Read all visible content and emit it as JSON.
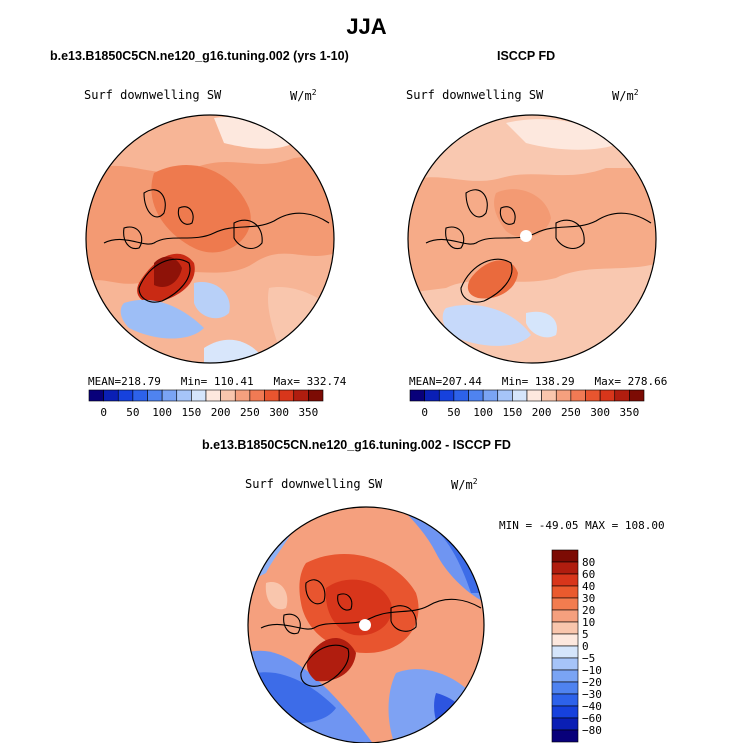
{
  "title": "JJA",
  "panels": [
    {
      "id": "model",
      "title": "b.e13.B1850C5CN.ne120_g16.tuning.002 (yrs 1-10)",
      "variable": "Surf downwelling SW",
      "units_base": "W/m",
      "units_exp": "2",
      "stats": {
        "mean_label": "MEAN=",
        "mean": "218.79",
        "min_label": "Min=",
        "min": "110.41",
        "max_label": "Max=",
        "max": "332.74"
      },
      "colorbar": {
        "colors": [
          "#08007a",
          "#0a1fb5",
          "#1641dd",
          "#2d62ea",
          "#4f83f0",
          "#7aa4f4",
          "#a6c4f8",
          "#d5e5fb",
          "#fde8de",
          "#f9c6ad",
          "#f5a07e",
          "#f07a54",
          "#e8552f",
          "#d8361b",
          "#b01d0f",
          "#7c0b04"
        ],
        "tick_labels": [
          "0",
          "50",
          "100",
          "150",
          "200",
          "250",
          "300",
          "350"
        ]
      }
    },
    {
      "id": "obs",
      "title": "ISCCP FD",
      "variable": "Surf downwelling SW",
      "units_base": "W/m",
      "units_exp": "2",
      "stats": {
        "mean_label": "MEAN=",
        "mean": "207.44",
        "min_label": "Min=",
        "min": "138.29",
        "max_label": "Max=",
        "max": "278.66"
      },
      "colorbar": {
        "colors": [
          "#08007a",
          "#0a1fb5",
          "#1641dd",
          "#2d62ea",
          "#4f83f0",
          "#7aa4f4",
          "#a6c4f8",
          "#d5e5fb",
          "#fde8de",
          "#f9c6ad",
          "#f5a07e",
          "#f07a54",
          "#e8552f",
          "#d8361b",
          "#b01d0f",
          "#7c0b04"
        ],
        "tick_labels": [
          "0",
          "50",
          "100",
          "150",
          "200",
          "250",
          "300",
          "350"
        ]
      }
    }
  ],
  "difference": {
    "title": "b.e13.B1850C5CN.ne120_g16.tuning.002 - ISCCP FD",
    "variable": "Surf downwelling SW",
    "units_base": "W/m",
    "units_exp": "2",
    "minmax": "MIN = -49.05 MAX = 108.00",
    "colorbar": {
      "colors_top_to_bottom": [
        "#7c0b04",
        "#b01d0f",
        "#d8361b",
        "#ea5a2e",
        "#f27c4f",
        "#f5a07e",
        "#f9c6ad",
        "#fde8de",
        "#d5e5fb",
        "#a6c4f8",
        "#7aa4f4",
        "#4f83f0",
        "#2d62ea",
        "#1641dd",
        "#0a1fb5",
        "#08007a"
      ],
      "tick_labels_top_to_bottom": [
        "80",
        "60",
        "40",
        "30",
        "20",
        "10",
        "5",
        "0",
        "−5",
        "−10",
        "−20",
        "−30",
        "−40",
        "−60",
        "−80"
      ]
    }
  },
  "map_colors": {
    "model_base": "#f7b596",
    "obs_base": "#f9c8b0",
    "diff_base": "#f5a07e",
    "coast": "#000000",
    "pole": "#ffffff"
  }
}
